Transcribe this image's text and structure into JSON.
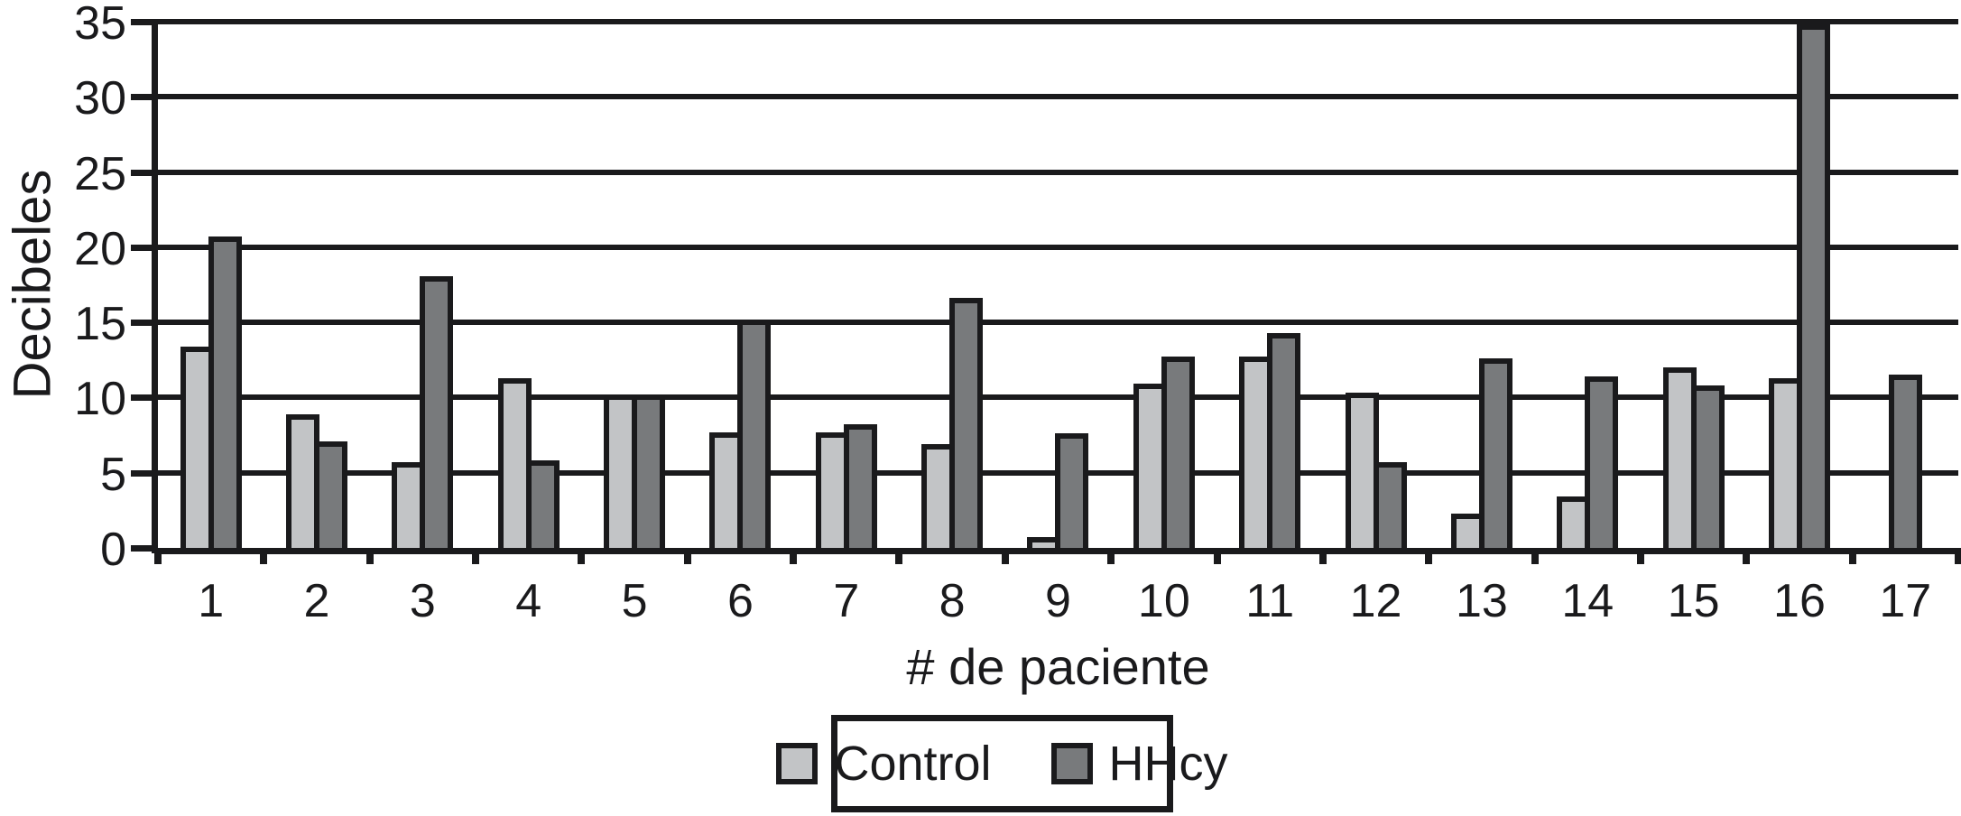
{
  "chart_data": {
    "type": "bar",
    "title": "",
    "xlabel": "# de paciente",
    "ylabel": "Decibeles",
    "categories": [
      "1",
      "2",
      "3",
      "4",
      "5",
      "6",
      "7",
      "8",
      "9",
      "10",
      "11",
      "12",
      "13",
      "14",
      "15",
      "16",
      "17"
    ],
    "series": [
      {
        "name": "Control",
        "color": "#c2c4c6",
        "values": [
          13.4,
          8.9,
          5.7,
          11.3,
          10.2,
          7.7,
          7.7,
          6.9,
          0.7,
          10.9,
          12.7,
          10.3,
          2.3,
          3.4,
          12.0,
          11.3,
          0
        ]
      },
      {
        "name": "HHcy",
        "color": "#787a7c",
        "values": [
          20.7,
          7.1,
          18.1,
          5.8,
          10.2,
          15.2,
          8.2,
          16.6,
          7.6,
          12.7,
          14.3,
          5.7,
          12.6,
          11.4,
          10.8,
          34.8,
          11.5
        ]
      }
    ],
    "ylim": [
      0,
      35
    ],
    "ytick_step": 5,
    "yticks": [
      "0",
      "5",
      "10",
      "15",
      "20",
      "25",
      "30",
      "35"
    ],
    "grid": "horizontal",
    "legend_position": "bottom-center",
    "axis_color": "#1a1a1c",
    "background_color": "#ffffff"
  }
}
